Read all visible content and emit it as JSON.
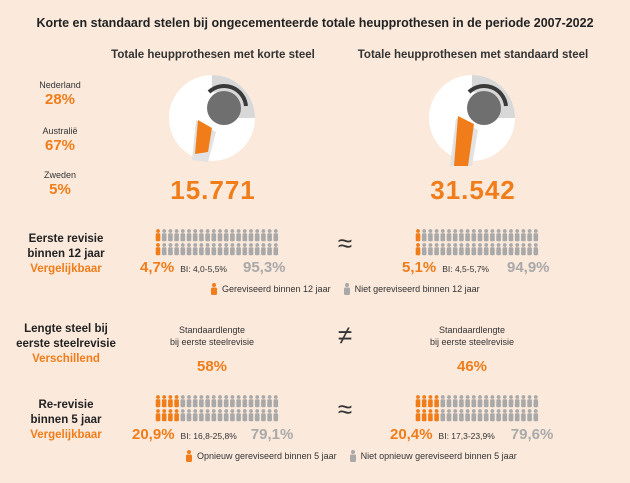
{
  "title": "Korte en standaard stelen bij ongecementeerde totale heupprothesen in de periode 2007-2022",
  "columns": {
    "left": "Totale heupprothesen met korte steel",
    "right": "Totale heupprothesen met standaard steel"
  },
  "countries": [
    {
      "name": "Nederland",
      "pct": "28%"
    },
    {
      "name": "Australië",
      "pct": "67%"
    },
    {
      "name": "Zweden",
      "pct": "5%"
    }
  ],
  "totals": {
    "left": "15.771",
    "right": "31.542"
  },
  "rows": {
    "revision": {
      "label1": "Eerste revisie",
      "label2": "binnen 12 jaar",
      "sub": "Vergelijkbaar",
      "symbol": "≈",
      "left": {
        "pct": "4,7%",
        "ci": "BI: 4,0-5,5%",
        "rest": "95,3%",
        "fraction": 0.047
      },
      "right": {
        "pct": "5,1%",
        "ci": "BI: 4,5-5,7%",
        "rest": "94,9%",
        "fraction": 0.051
      },
      "legend_yes": "Gereviseerd binnen 12 jaar",
      "legend_no": "Niet gereviseerd binnen 12 jaar"
    },
    "length": {
      "label1": "Lengte steel bij",
      "label2": "eerste steelrevisie",
      "sub": "Verschillend",
      "symbol": "≠",
      "std_label1": "Standaardlengte",
      "std_label2": "bij eerste steelrevisie",
      "left": "58%",
      "right": "46%"
    },
    "rerevision": {
      "label1": "Re-revisie",
      "label2": "binnen 5 jaar",
      "sub": "Vergelijkbaar",
      "symbol": "≈",
      "left": {
        "pct": "20,9%",
        "ci": "BI: 16,8-25,8%",
        "rest": "79,1%",
        "fraction": 0.209
      },
      "right": {
        "pct": "20,4%",
        "ci": "BI: 17,3-23,9%",
        "rest": "79,6%",
        "fraction": 0.204
      },
      "legend_yes": "Opnieuw gereviseerd binnen 5 jaar",
      "legend_no": "Niet opnieuw gereviseerd binnen 5 jaar"
    }
  },
  "colors": {
    "orange": "#f07d1a",
    "grey": "#a9a9a9",
    "dark": "#6f6f6f",
    "background": "#fbe9dc"
  }
}
